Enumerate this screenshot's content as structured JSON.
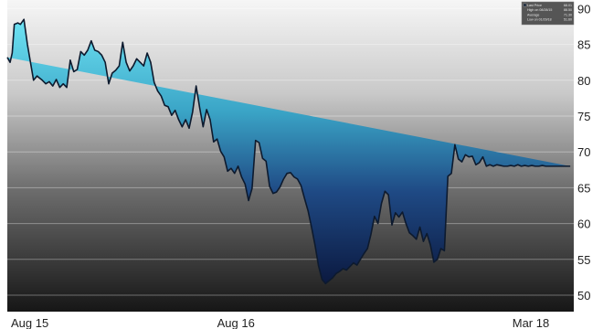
{
  "chart_data": {
    "type": "area",
    "title": "",
    "xlabel": "",
    "ylabel": "",
    "x_tick_labels": [
      "Aug 15",
      "Aug 16",
      "Mar 18"
    ],
    "x_ticks_month_index": [
      0,
      12,
      31
    ],
    "x_range_months": [
      0,
      32.4
    ],
    "y_ticks": [
      50,
      55,
      60,
      65,
      70,
      75,
      80,
      85,
      90
    ],
    "ylim": [
      47.7,
      91.2
    ],
    "y_axis_position": "right",
    "grid": "horizontal",
    "legend": {
      "position": "top-right",
      "entries": [
        {
          "label": "Last Price",
          "value": "68.01"
        },
        {
          "label": "High on 08/28/15",
          "value": "88.50"
        },
        {
          "label": "Average",
          "value": "71.30"
        },
        {
          "label": "Low on 01/29/18",
          "value": "51.60"
        }
      ]
    },
    "series": [
      {
        "name": "Last Price",
        "color": "#0d1a2e",
        "x_month_index": [
          0,
          0.16,
          0.28,
          0.4,
          0.6,
          0.75,
          0.95,
          1.15,
          1.5,
          1.7,
          1.85,
          2.0,
          2.2,
          2.4,
          2.6,
          2.8,
          3.0,
          3.2,
          3.4,
          3.6,
          3.8,
          4.0,
          4.2,
          4.4,
          4.6,
          4.8,
          5.0,
          5.2,
          5.4,
          5.6,
          5.8,
          6.0,
          6.2,
          6.4,
          6.6,
          6.8,
          7.0,
          7.2,
          7.4,
          7.6,
          7.8,
          8.0,
          8.2,
          8.4,
          8.6,
          8.8,
          9.0,
          9.2,
          9.4,
          9.6,
          9.8,
          10.0,
          10.2,
          10.4,
          10.6,
          10.8,
          11.0,
          11.2,
          11.4,
          11.6,
          11.8,
          12.0,
          12.2,
          12.4,
          12.6,
          12.8,
          13.0,
          13.2,
          13.4,
          13.6,
          13.8,
          14.0,
          14.2,
          14.4,
          14.6,
          14.8,
          15.0,
          15.2,
          15.4,
          15.6,
          15.8,
          16.0,
          16.2,
          16.4,
          16.6,
          16.8,
          17.0,
          17.2,
          17.4,
          17.6,
          17.8,
          18.0,
          18.2,
          18.4,
          18.6,
          18.8,
          19.0,
          19.2,
          19.4,
          19.6,
          19.8,
          20.0,
          20.2,
          20.4,
          20.6,
          20.8,
          21.0,
          21.2,
          21.4,
          21.6,
          21.8,
          22.0,
          22.2,
          22.4,
          22.6,
          22.8,
          23.0,
          23.2,
          23.4,
          23.6,
          23.8,
          24.0,
          24.2,
          24.4,
          24.6,
          24.8,
          25.0,
          25.2,
          25.4,
          25.6,
          25.8,
          26.0,
          26.2,
          26.4,
          26.6,
          26.8,
          27.0,
          27.2,
          27.4,
          27.6,
          27.8,
          28.0,
          28.2,
          28.4,
          28.6,
          28.8,
          29.0,
          29.2,
          29.4,
          29.6,
          29.8,
          30.0,
          30.2,
          30.4,
          30.6,
          30.8,
          31.0,
          31.2,
          31.4,
          31.6,
          31.8,
          32.0,
          32.2,
          32.4
        ],
        "values": [
          83.2,
          82.5,
          83.8,
          87.8,
          88.0,
          87.8,
          88.5,
          85.0,
          80.0,
          80.6,
          80.3,
          80.0,
          79.5,
          79.8,
          79.2,
          80.1,
          79.0,
          79.5,
          79.0,
          82.8,
          81.2,
          81.5,
          84.0,
          83.5,
          84.2,
          85.5,
          84.2,
          84.0,
          83.5,
          82.5,
          79.5,
          81.0,
          81.4,
          82.0,
          85.3,
          82.5,
          81.3,
          82.0,
          83.0,
          82.5,
          82.0,
          83.8,
          82.5,
          79.7,
          78.5,
          77.8,
          76.5,
          76.3,
          75.1,
          75.8,
          74.5,
          73.5,
          74.5,
          73.3,
          75.6,
          79.2,
          76.2,
          73.5,
          75.9,
          74.5,
          71.4,
          71.8,
          70.1,
          69.3,
          67.3,
          67.7,
          67.0,
          68.0,
          66.5,
          65.5,
          63.2,
          64.9,
          71.6,
          71.3,
          69.1,
          68.7,
          65.2,
          64.2,
          64.4,
          65.1,
          66.2,
          67.0,
          67.1,
          66.5,
          66.2,
          65.3,
          63.5,
          61.8,
          59.5,
          57.0,
          54.1,
          52.2,
          51.6,
          52.0,
          52.4,
          53.0,
          53.3,
          53.7,
          53.5,
          54.0,
          54.5,
          54.2,
          55.0,
          55.8,
          56.5,
          58.5,
          61.0,
          60.0,
          62.8,
          64.5,
          64.0,
          59.8,
          61.5,
          60.9,
          61.6,
          60.0,
          58.7,
          58.3,
          57.8,
          59.5,
          57.5,
          58.6,
          57.0,
          54.6,
          55.0,
          56.5,
          56.2,
          66.6,
          67.0,
          71.0,
          69.0,
          68.6,
          69.6,
          69.3,
          69.4,
          68.2,
          68.5,
          69.3,
          68.0,
          68.2,
          68.0,
          68.2,
          68.1,
          68.0,
          68.0,
          68.1,
          68.0,
          68.2,
          68.0,
          68.1,
          68.0,
          68.1,
          68.0,
          68.0,
          68.1,
          68.0,
          68.0,
          68.0,
          68.0,
          68.0,
          68.0,
          68.0,
          68.0
        ]
      }
    ]
  }
}
